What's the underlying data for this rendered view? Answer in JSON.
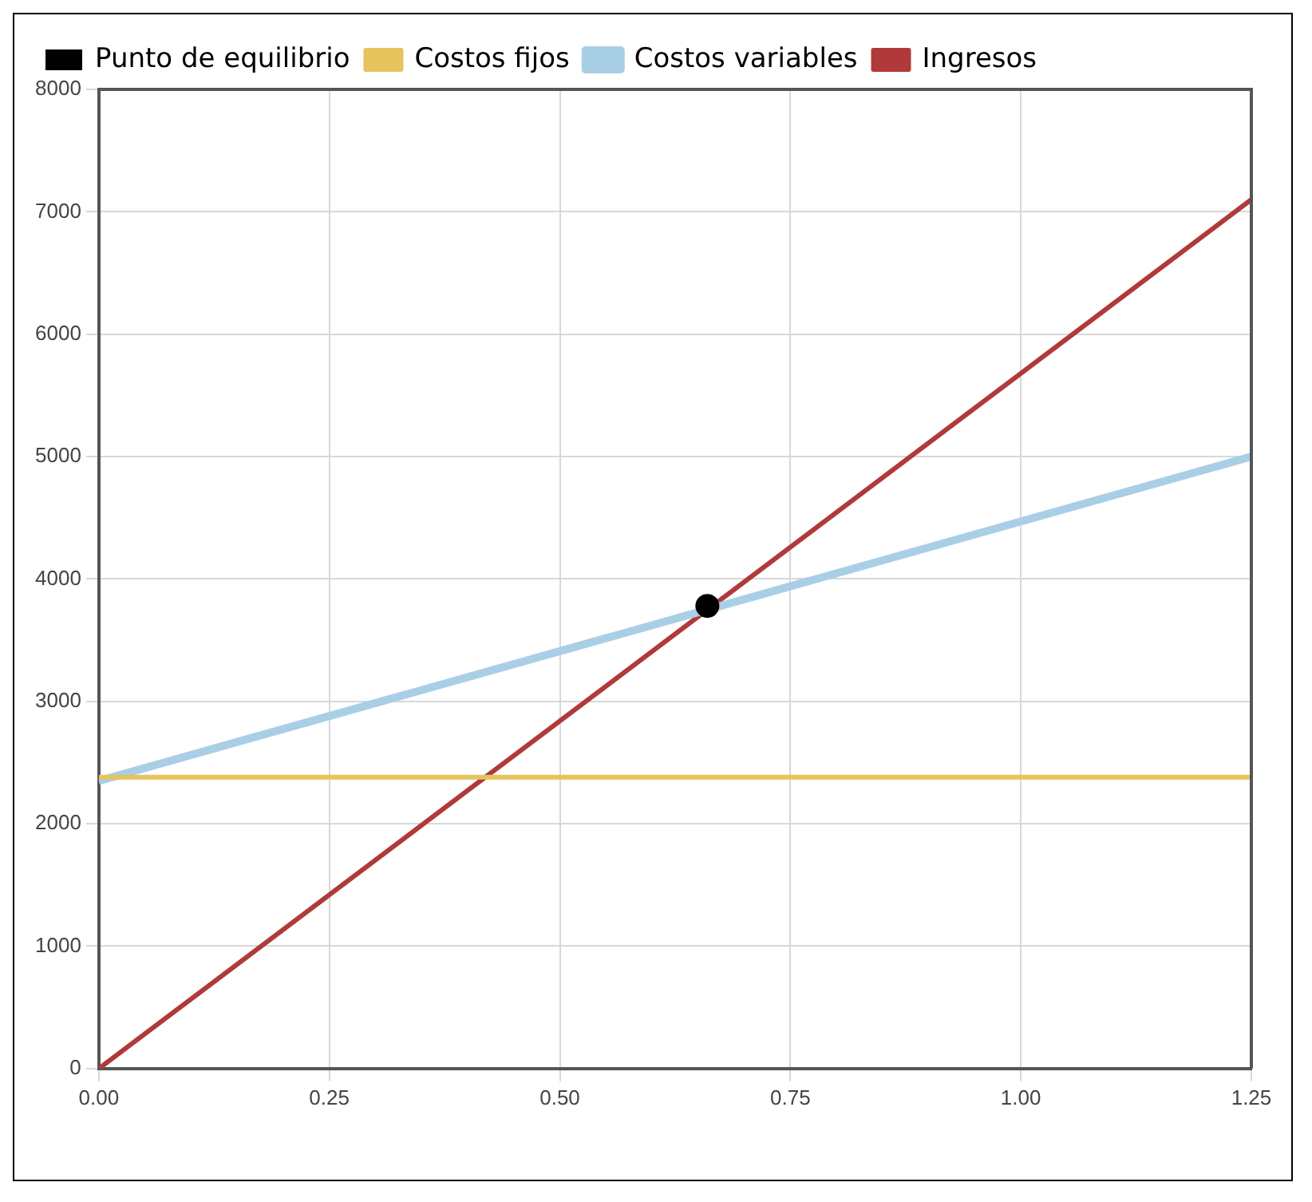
{
  "chart_data": {
    "type": "line",
    "xlim": [
      0,
      1.25
    ],
    "xticks": [
      {
        "value": 0,
        "label": "0.00"
      },
      {
        "value": 0.25,
        "label": "0.25"
      },
      {
        "value": 0.5,
        "label": "0.50"
      },
      {
        "value": 0.75,
        "label": "0.75"
      },
      {
        "value": 1,
        "label": "1.00"
      },
      {
        "value": 1.25,
        "label": "1.25"
      }
    ],
    "ylim": [
      0,
      8000
    ],
    "yticks": [
      0,
      1000,
      2000,
      3000,
      4000,
      5000,
      6000,
      7000,
      8000
    ],
    "grid": true,
    "legend": "top left",
    "marker": "none",
    "series": [
      {
        "name": "Costos fijos",
        "color": "#e6c35c",
        "x": [
          0,
          1.25
        ],
        "values": [
          2380,
          2380
        ]
      },
      {
        "name": "Costos variables",
        "color": "#a9cfe6",
        "x": [
          0,
          1.25
        ],
        "values": [
          2350,
          5000
        ]
      },
      {
        "name": "Ingresos",
        "color": "#b03a3a",
        "x": [
          0,
          1.25
        ],
        "values": [
          0,
          7100
        ]
      },
      {
        "name": "Punto de equilibrio",
        "type": "scatter",
        "marker": "circle",
        "color": "#000000",
        "x": [
          0.66
        ],
        "values": [
          3780
        ]
      }
    ]
  }
}
